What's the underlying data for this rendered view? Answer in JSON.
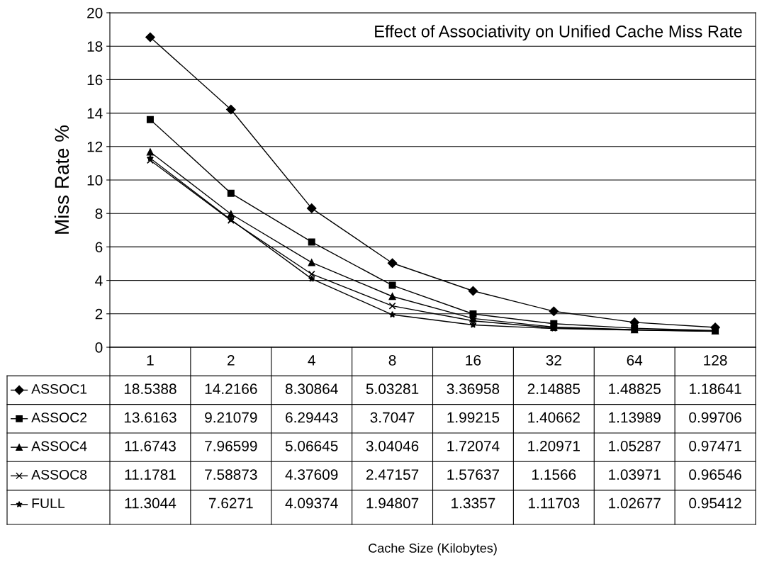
{
  "chart_data": {
    "type": "line",
    "title": "Effect of Associativity on Unified Cache Miss Rate",
    "annotations": [
      "Cache Size (Kilobytes)"
    ],
    "legend": "bottom left",
    "ylabel": "Miss Rate %",
    "categories": [
      "1",
      "2",
      "4",
      "8",
      "16",
      "32",
      "64",
      "128"
    ],
    "series": [
      {
        "name": "ASSOC1",
        "color": "#000000",
        "marker": "diamond",
        "values": [
          18.5388,
          14.2166,
          8.30864,
          5.03281,
          3.36958,
          2.14885,
          1.48825,
          1.18641
        ]
      },
      {
        "name": "ASSOC2",
        "color": "#000000",
        "marker": "square",
        "values": [
          13.6163,
          9.21079,
          6.29443,
          3.7047,
          1.99215,
          1.40662,
          1.13989,
          0.99706
        ]
      },
      {
        "name": "ASSOC4",
        "color": "#000000",
        "marker": "triangle",
        "values": [
          11.6743,
          7.96599,
          5.06645,
          3.04046,
          1.72074,
          1.20971,
          1.05287,
          0.97471
        ]
      },
      {
        "name": "ASSOC8",
        "color": "#000000",
        "marker": "cross",
        "values": [
          11.1781,
          7.58873,
          4.37609,
          2.47157,
          1.57637,
          1.1566,
          1.03971,
          0.96546
        ]
      },
      {
        "name": "FULL",
        "color": "#000000",
        "marker": "star",
        "values": [
          11.3044,
          7.6271,
          4.09374,
          1.94807,
          1.3357,
          1.11703,
          1.02677,
          0.95412
        ]
      }
    ],
    "ylim": [
      0,
      20
    ],
    "yticks": [
      0,
      2,
      4,
      6,
      8,
      10,
      12,
      14,
      16,
      18,
      20
    ],
    "grid": "y",
    "data_labels": true,
    "line_style": "solid"
  }
}
